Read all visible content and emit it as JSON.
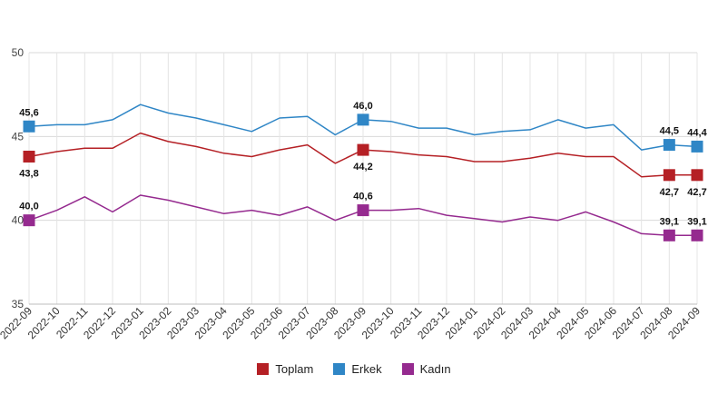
{
  "chart_data": {
    "type": "line",
    "categories": [
      "2022-09",
      "2022-10",
      "2022-11",
      "2022-12",
      "2023-01",
      "2023-02",
      "2023-03",
      "2023-04",
      "2023-05",
      "2023-06",
      "2023-07",
      "2023-08",
      "2023-09",
      "2023-10",
      "2023-11",
      "2023-12",
      "2024-01",
      "2024-02",
      "2024-03",
      "2024-04",
      "2024-05",
      "2024-06",
      "2024-07",
      "2024-08",
      "2024-09"
    ],
    "ylim": [
      35,
      50
    ],
    "yticks": [
      35,
      40,
      45,
      50
    ],
    "grid": true,
    "legend_position": "bottom-center",
    "series": [
      {
        "name": "Toplam",
        "color": "#b52025",
        "values": [
          43.8,
          44.1,
          44.3,
          44.3,
          45.2,
          44.7,
          44.4,
          44.0,
          43.8,
          44.2,
          44.5,
          43.4,
          44.2,
          44.1,
          43.9,
          43.8,
          43.5,
          43.5,
          43.7,
          44.0,
          43.8,
          43.8,
          42.6,
          42.7,
          42.7
        ],
        "labels": [
          {
            "index": 0,
            "text": "43,8",
            "pos": "below"
          },
          {
            "index": 12,
            "text": "44,2",
            "pos": "below"
          },
          {
            "index": 23,
            "text": "42,7",
            "pos": "below"
          },
          {
            "index": 24,
            "text": "42,7",
            "pos": "below"
          }
        ]
      },
      {
        "name": "Erkek",
        "color": "#2f86c6",
        "values": [
          45.6,
          45.7,
          45.7,
          46.0,
          46.9,
          46.4,
          46.1,
          45.7,
          45.3,
          46.1,
          46.2,
          45.1,
          46.0,
          45.9,
          45.5,
          45.5,
          45.1,
          45.3,
          45.4,
          46.0,
          45.5,
          45.7,
          44.2,
          44.5,
          44.4
        ],
        "labels": [
          {
            "index": 0,
            "text": "45,6",
            "pos": "above"
          },
          {
            "index": 12,
            "text": "46,0",
            "pos": "above"
          },
          {
            "index": 23,
            "text": "44,5",
            "pos": "above"
          },
          {
            "index": 24,
            "text": "44,4",
            "pos": "above"
          }
        ]
      },
      {
        "name": "Kadın",
        "color": "#952a8f",
        "values": [
          40.0,
          40.6,
          41.4,
          40.5,
          41.5,
          41.2,
          40.8,
          40.4,
          40.6,
          40.3,
          40.8,
          40.0,
          40.6,
          40.6,
          40.7,
          40.3,
          40.1,
          39.9,
          40.2,
          40.0,
          40.5,
          39.9,
          39.2,
          39.1,
          39.1
        ],
        "labels": [
          {
            "index": 0,
            "text": "40,0",
            "pos": "above"
          },
          {
            "index": 12,
            "text": "40,6",
            "pos": "above"
          },
          {
            "index": 23,
            "text": "39,1",
            "pos": "above"
          },
          {
            "index": 24,
            "text": "39,1",
            "pos": "above"
          }
        ]
      }
    ]
  }
}
